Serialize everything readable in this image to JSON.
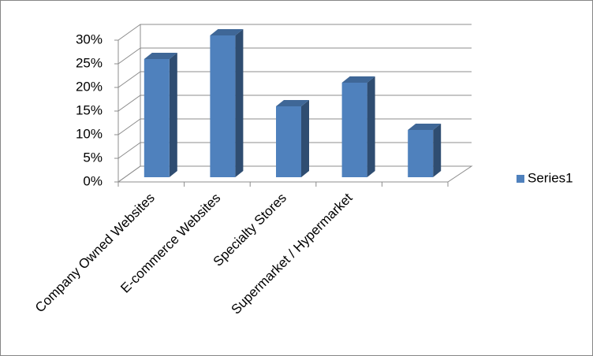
{
  "chart_data": {
    "type": "bar3d",
    "categories": [
      "Company Owned Websites",
      "E-commerce Websites",
      "Specialty Stores",
      "Supermarket / Hypermarket",
      null
    ],
    "series": [
      {
        "name": "Series1",
        "color": "#4f81bd",
        "values": [
          25,
          30,
          15,
          20,
          10
        ]
      }
    ],
    "ylim": [
      0,
      30
    ],
    "yticks": [
      {
        "value": 0,
        "label": "0%"
      },
      {
        "value": 5,
        "label": "5%"
      },
      {
        "value": 10,
        "label": "10%"
      },
      {
        "value": 15,
        "label": "15%"
      },
      {
        "value": 20,
        "label": "20%"
      },
      {
        "value": 25,
        "label": "25%"
      },
      {
        "value": 30,
        "label": "30%"
      }
    ],
    "grid": true,
    "legend": "right"
  }
}
